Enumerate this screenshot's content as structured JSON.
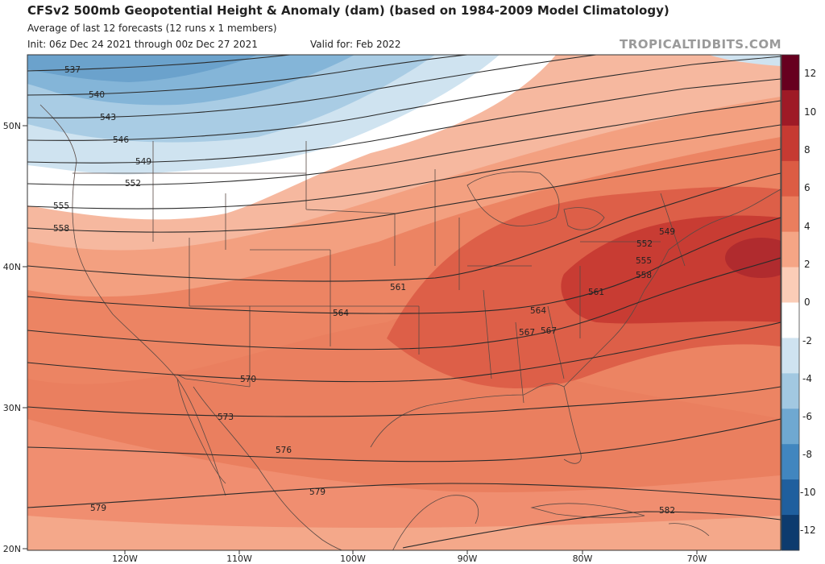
{
  "header": {
    "title": "CFSv2 500mb Geopotential Height & Anomaly (dam) (based on 1984-2009 Model Climatology)",
    "subtitle": "Average of last 12 forecasts (12 runs x 1 members)",
    "init": "Init: 06z Dec 24 2021 through 00z Dec 27 2021",
    "valid": "Valid for: Feb 2022",
    "brand": "TROPICALTIDBITS.COM"
  },
  "latitude_labels": [
    "50N",
    "40N",
    "30N",
    "20N"
  ],
  "longitude_labels": [
    "120W",
    "110W",
    "100W",
    "90W",
    "80W",
    "70W"
  ],
  "contour_labels": [
    "537",
    "540",
    "543",
    "546",
    "549",
    "552",
    "555",
    "558",
    "561",
    "564",
    "567",
    "570",
    "573",
    "576",
    "579",
    "582",
    "549",
    "552",
    "555",
    "558",
    "561",
    "564",
    "567"
  ],
  "colorbar": {
    "ticks": [
      "12",
      "10",
      "8",
      "6",
      "4",
      "2",
      "0",
      "-2",
      "-4",
      "-6",
      "-8",
      "-10",
      "-12"
    ],
    "colors": [
      "#67001f",
      "#9e1a26",
      "#c63a32",
      "#dc5c44",
      "#ea7e5e",
      "#f5a585",
      "#fbcdb7",
      "#ffffff",
      "#cfe3f0",
      "#a2c8e1",
      "#6fa8d1",
      "#4186bf",
      "#1f5f9e",
      "#0d3b6e"
    ]
  }
}
